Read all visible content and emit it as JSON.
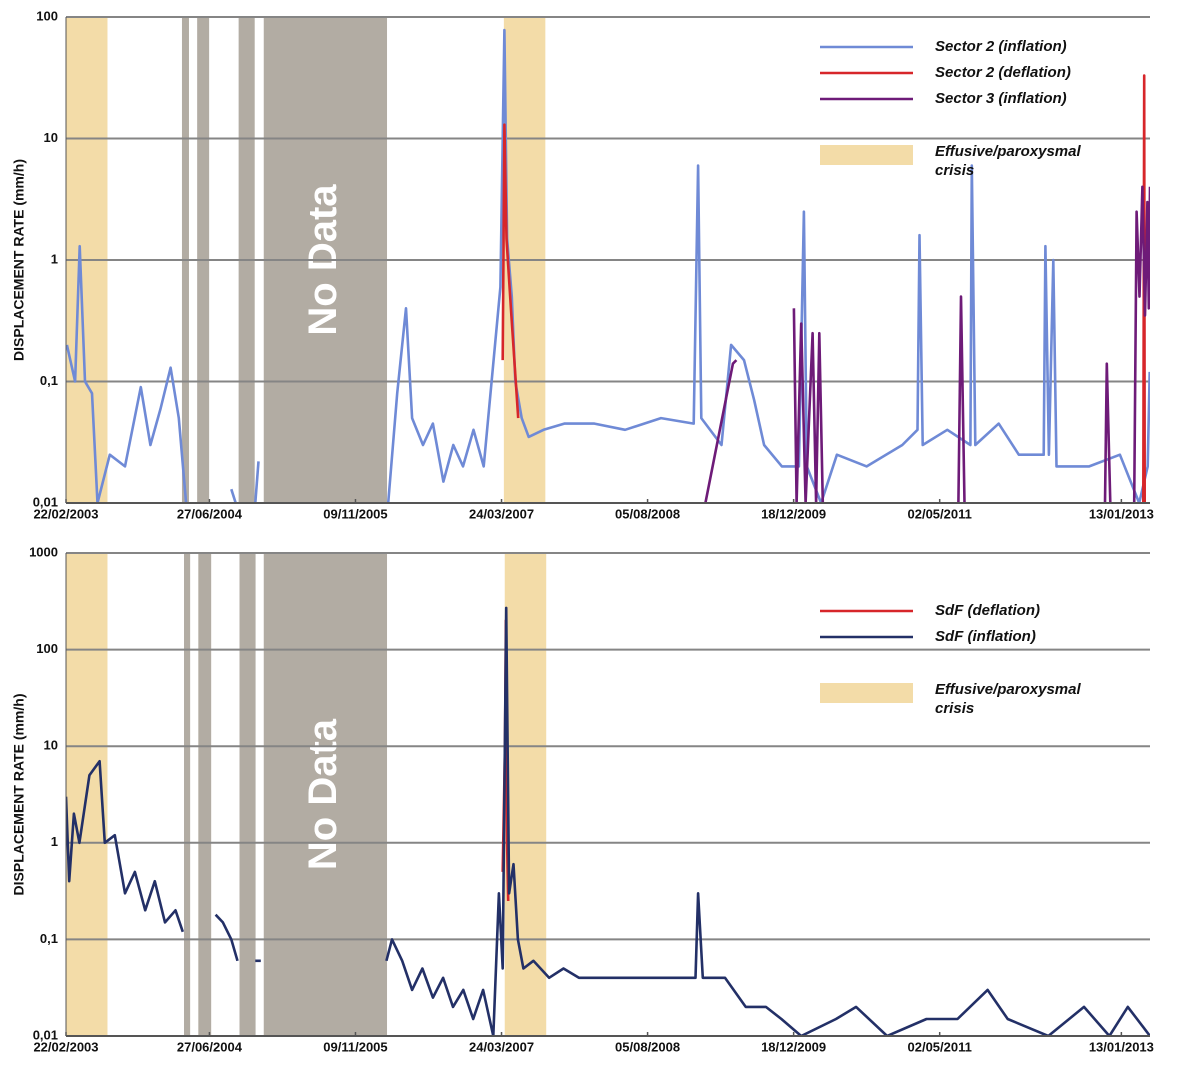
{
  "chart_data": [
    {
      "type": "line",
      "y_label": "DISPLACEMENT RATE (mm/h)",
      "log_scale": true,
      "grid": true,
      "legend": "upper right",
      "xlim": [
        "22/02/2003",
        "21/04/2013"
      ],
      "xticks": [
        "22/02/2003",
        "27/06/2004",
        "09/11/2005",
        "24/03/2007",
        "05/08/2008",
        "18/12/2009",
        "02/05/2011",
        "13/01/2013"
      ],
      "ylim": [
        0.01,
        100
      ],
      "yticks": [
        {
          "value": 0.01,
          "label": "0,01"
        },
        {
          "value": 0.1,
          "label": "0,1"
        },
        1,
        10,
        100
      ],
      "crisis": {
        "label": [
          "Effusive/paroxysmal",
          "crisis"
        ],
        "color": "#f3dca8",
        "periods": [
          [
            "22/02/2003",
            "14/07/2003"
          ],
          [
            "01/04/2007",
            "21/08/2007"
          ]
        ]
      },
      "no_data": {
        "label": "No Data",
        "color": "#b2aca3",
        "periods": [
          [
            "25/03/2004",
            "18/04/2004"
          ],
          [
            "16/05/2004",
            "26/06/2004"
          ],
          [
            "05/10/2004",
            "29/11/2004"
          ],
          [
            "30/12/2004",
            "25/02/2006"
          ]
        ]
      },
      "series": [
        {
          "name": "Sector 2 (inflation)",
          "color": "#6f8ad6",
          "x": [
            "25/02/2003",
            "25/03/2003",
            "10/04/2003",
            "28/04/2003",
            "22/05/2003",
            "10/06/2003",
            "22/07/2003",
            "12/09/2003",
            "05/11/2003",
            "08/12/2003",
            "12/01/2004",
            "15/02/2004",
            "14/03/2004",
            "08/04/2004",
            null,
            "10/09/2004",
            "25/09/2004",
            null,
            "01/12/2004",
            "12/12/2004",
            null,
            "01/03/2006",
            "01/04/2006",
            "01/05/2006",
            "22/05/2006",
            "28/06/2006",
            "01/08/2006",
            "06/09/2006",
            "10/10/2006",
            "12/11/2006",
            "18/12/2006",
            "22/01/2007",
            "25/02/2007",
            "20/03/2007",
            "03/04/2007",
            "12/04/2007",
            "28/04/2007",
            "10/05/2007",
            "01/06/2007",
            "25/06/2007",
            "15/08/2007",
            "25/10/2007",
            "05/02/2008",
            "20/05/2008",
            "20/09/2008",
            "10/01/2009",
            "25/01/2009",
            "05/02/2009",
            "15/04/2009",
            "18/05/2009",
            "01/07/2009",
            "05/08/2009",
            "08/09/2009",
            "08/11/2009",
            "05/01/2010",
            "22/01/2010",
            "01/02/2010",
            "22/03/2010",
            "15/05/2010",
            "25/08/2010",
            "25/12/2010",
            "15/02/2011",
            "22/02/2011",
            "05/03/2011",
            "28/05/2011",
            "15/08/2011",
            "20/08/2011",
            "01/09/2011",
            "20/11/2011",
            "28/01/2012",
            "22/04/2012",
            "28/04/2012",
            "10/05/2012",
            "25/05/2012",
            "05/06/2012",
            "25/09/2012",
            "08/01/2013",
            "15/03/2013",
            "13/04/2013",
            "20/04/2013"
          ],
          "values": [
            0.2,
            0.1,
            1.3,
            0.1,
            0.08,
            0.01,
            0.025,
            0.02,
            0.09,
            0.03,
            0.06,
            0.13,
            0.05,
            0.01,
            null,
            0.013,
            0.01,
            null,
            0.01,
            0.022,
            null,
            0.01,
            0.08,
            0.4,
            0.05,
            0.03,
            0.045,
            0.015,
            0.03,
            0.02,
            0.04,
            0.02,
            0.15,
            0.6,
            78,
            1.5,
            0.5,
            0.1,
            0.05,
            0.035,
            0.04,
            0.045,
            0.045,
            0.04,
            0.05,
            0.045,
            6,
            0.05,
            0.03,
            0.2,
            0.15,
            0.07,
            0.03,
            0.02,
            0.02,
            2.5,
            0.02,
            0.01,
            0.025,
            0.02,
            0.03,
            0.04,
            1.6,
            0.03,
            0.04,
            0.03,
            6,
            0.03,
            0.045,
            0.025,
            0.025,
            1.3,
            0.025,
            1,
            0.02,
            0.02,
            0.025,
            0.01,
            0.02,
            0.12
          ]
        },
        {
          "name": "Sector 2 (deflation)",
          "color": "#d7262a",
          "x": [
            "28/03/2007",
            "03/04/2007",
            "10/04/2007",
            "25/04/2007",
            "20/05/2007",
            null,
            "29/03/2013",
            "01/04/2013",
            "03/04/2013"
          ],
          "values": [
            0.15,
            13,
            1.5,
            0.4,
            0.05,
            null,
            0.01,
            33,
            0.01
          ]
        },
        {
          "name": "Sector 3 (inflation)",
          "color": "#6e1b78",
          "x": [
            "19/02/2009",
            "24/05/2009",
            "05/06/2009",
            null,
            "19/12/2009",
            "28/12/2009",
            "13/01/2010",
            "28/01/2010",
            "21/02/2010",
            "05/03/2010",
            "16/03/2010",
            "28/03/2010",
            null,
            "05/07/2011",
            "14/07/2011",
            "26/07/2011",
            null,
            "18/11/2012",
            "24/11/2012",
            "06/12/2012",
            null,
            "26/02/2013",
            "06/03/2013",
            "16/03/2013",
            "26/03/2013",
            "04/04/2013",
            "12/04/2013",
            "17/04/2013",
            "21/04/2013"
          ],
          "values": [
            0.01,
            0.14,
            0.15,
            null,
            0.4,
            0.01,
            0.3,
            0.01,
            0.25,
            0.01,
            0.25,
            0.01,
            null,
            0.01,
            0.5,
            0.01,
            null,
            0.01,
            0.14,
            0.01,
            null,
            0.01,
            2.5,
            0.5,
            4,
            0.35,
            3,
            0.4,
            4
          ]
        }
      ]
    },
    {
      "type": "line",
      "y_label": "DISPLACEMENT RATE (mm/h)",
      "log_scale": true,
      "grid": true,
      "legend": "upper right",
      "xlim": [
        "22/02/2003",
        "21/04/2013"
      ],
      "xticks": [
        "22/02/2003",
        "27/06/2004",
        "09/11/2005",
        "24/03/2007",
        "05/08/2008",
        "18/12/2009",
        "02/05/2011",
        "13/01/2013"
      ],
      "ylim": [
        0.01,
        1000
      ],
      "yticks": [
        {
          "value": 0.01,
          "label": "0,01"
        },
        {
          "value": 0.1,
          "label": "0,1"
        },
        1,
        10,
        100,
        1000
      ],
      "crisis": {
        "label": [
          "Effusive/paroxysmal",
          "crisis"
        ],
        "color": "#f3dca8",
        "periods": [
          [
            "22/02/2003",
            "14/07/2003"
          ],
          [
            "04/04/2007",
            "24/08/2007"
          ]
        ]
      },
      "no_data": {
        "label": "No Data",
        "color": "#b2aca3",
        "periods": [
          [
            "01/04/2004",
            "22/04/2004"
          ],
          [
            "20/05/2004",
            "03/07/2004"
          ],
          [
            "08/10/2004",
            "02/12/2004"
          ],
          [
            "30/12/2004",
            "25/02/2006"
          ]
        ]
      },
      "series": [
        {
          "name": "SdF (deflation)",
          "color": "#d7262a",
          "x": [
            "28/03/2007",
            "05/04/2007",
            "08/04/2007",
            "12/04/2007",
            "16/04/2007"
          ],
          "values": [
            0.5,
            10,
            200,
            1,
            0.25
          ]
        },
        {
          "name": "SdF (inflation)",
          "color": "#233067",
          "x": [
            "22/02/2003",
            "05/03/2003",
            "21/03/2003",
            "09/04/2003",
            "13/05/2003",
            "17/06/2003",
            "05/07/2003",
            "08/08/2003",
            "12/09/2003",
            "16/10/2003",
            "20/11/2003",
            "23/12/2003",
            "27/01/2004",
            "03/03/2004",
            "28/03/2004",
            null,
            "18/07/2004",
            "12/08/2004",
            "10/09/2004",
            "01/10/2004",
            null,
            "01/12/2004",
            "20/12/2004",
            null,
            "23/02/2006",
            "14/03/2006",
            "18/04/2006",
            "22/05/2006",
            "26/06/2006",
            "01/08/2006",
            "05/09/2006",
            "09/10/2006",
            "13/11/2006",
            "17/12/2006",
            "20/01/2007",
            "24/02/2007",
            "15/03/2007",
            "28/03/2007",
            "09/04/2007",
            "19/04/2007",
            "04/05/2007",
            "19/05/2007",
            "07/06/2007",
            "11/07/2007",
            "03/09/2007",
            "22/10/2007",
            "14/12/2007",
            "09/03/2008",
            "28/08/2008",
            "16/01/2009",
            "25/01/2009",
            "10/02/2009",
            "27/04/2009",
            "07/07/2009",
            "14/09/2009",
            "06/11/2009",
            "13/01/2010",
            "12/05/2010",
            "20/07/2010",
            "03/11/2010",
            "18/03/2011",
            "02/07/2011",
            "13/10/2011",
            "21/12/2011",
            "08/05/2012",
            "07/09/2012",
            "03/12/2012",
            "04/02/2013",
            "21/04/2013"
          ],
          "values": [
            3,
            0.4,
            2,
            1,
            5,
            7,
            1,
            1.2,
            0.3,
            0.5,
            0.2,
            0.4,
            0.15,
            0.2,
            0.12,
            null,
            0.18,
            0.15,
            0.1,
            0.06,
            null,
            0.06,
            0.06,
            null,
            0.06,
            0.1,
            0.06,
            0.03,
            0.05,
            0.025,
            0.04,
            0.02,
            0.03,
            0.015,
            0.03,
            0.01,
            0.3,
            0.05,
            270,
            0.3,
            0.6,
            0.1,
            0.05,
            0.06,
            0.04,
            0.05,
            0.04,
            0.04,
            0.04,
            0.04,
            0.3,
            0.04,
            0.04,
            0.02,
            0.02,
            0.015,
            0.01,
            0.015,
            0.02,
            0.01,
            0.015,
            0.015,
            0.03,
            0.015,
            0.01,
            0.02,
            0.01,
            0.02,
            0.01
          ]
        }
      ]
    }
  ]
}
